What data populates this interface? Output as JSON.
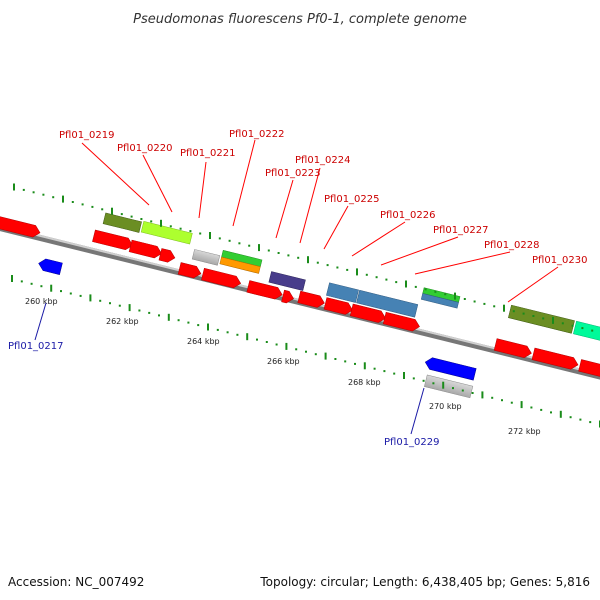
{
  "title": "Pseudomonas fluorescens Pf0-1, complete genome",
  "footer": {
    "accession": "Accession: NC_007492",
    "summary": "Topology: circular; Length: 6,438,405 bp; Genes: 5,816"
  },
  "ruler_ticks": [
    "260 kbp",
    "262 kbp",
    "264 kbp",
    "266 kbp",
    "268 kbp",
    "270 kbp",
    "272 kbp"
  ],
  "gene_labels": {
    "plus": [
      "Pfl01_0219",
      "Pfl01_0220",
      "Pfl01_0221",
      "Pfl01_0222",
      "Pfl01_0223",
      "Pfl01_0224",
      "Pfl01_0225",
      "Pfl01_0226",
      "Pfl01_0227",
      "Pfl01_0228",
      "Pfl01_0230"
    ],
    "minus": [
      "Pfl01_0217",
      "Pfl01_0229"
    ]
  },
  "colors": {
    "cds": "#ff0000",
    "cds_minus": "#0000ff",
    "backbone": "#777777",
    "tick": "#1a8c1a",
    "label_plus": "#cc0000",
    "label_minus": "#1a1aa6"
  }
}
